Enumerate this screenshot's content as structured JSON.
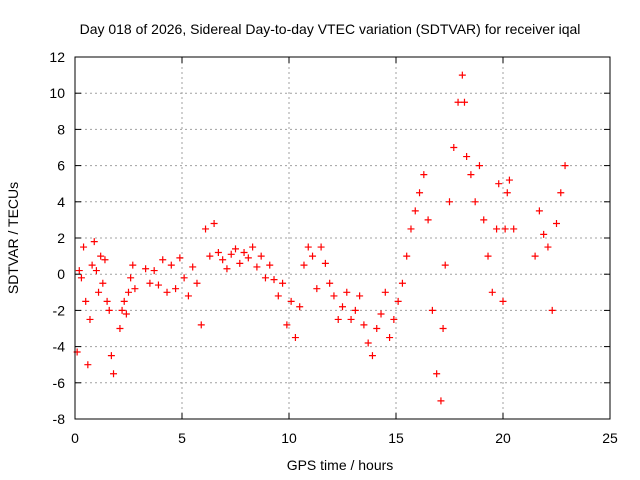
{
  "chart_data": {
    "type": "scatter",
    "title": "Day 018 of 2026, Sidereal Day-to-day VTEC variation (SDTVAR) for receiver iqal",
    "xlabel": "GPS time / hours",
    "ylabel": "SDTVAR / TECUs",
    "xlim": [
      0,
      25
    ],
    "ylim": [
      -8,
      12
    ],
    "xticks": [
      0,
      5,
      10,
      15,
      20,
      25
    ],
    "yticks": [
      -8,
      -6,
      -4,
      -2,
      0,
      2,
      4,
      6,
      8,
      10,
      12
    ],
    "grid": true,
    "marker": "+",
    "colors": {
      "series": "#ff0000",
      "grid": "#a0a0a0",
      "axis": "#000000"
    },
    "series": [
      {
        "name": "SDTVAR",
        "x": [
          0.1,
          0.2,
          0.3,
          0.4,
          0.5,
          0.6,
          0.7,
          0.8,
          0.9,
          1.0,
          1.1,
          1.2,
          1.3,
          1.4,
          1.5,
          1.6,
          1.7,
          1.8,
          2.1,
          2.2,
          2.3,
          2.4,
          2.5,
          2.6,
          2.7,
          2.8,
          3.3,
          3.5,
          3.7,
          3.9,
          4.1,
          4.3,
          4.5,
          4.7,
          4.9,
          5.1,
          5.3,
          5.5,
          5.7,
          5.9,
          6.1,
          6.3,
          6.5,
          6.7,
          6.9,
          7.1,
          7.3,
          7.5,
          7.7,
          7.9,
          8.1,
          8.3,
          8.5,
          8.7,
          8.9,
          9.1,
          9.3,
          9.5,
          9.7,
          9.9,
          10.1,
          10.3,
          10.5,
          10.7,
          10.9,
          11.1,
          11.3,
          11.5,
          11.7,
          11.9,
          12.1,
          12.3,
          12.5,
          12.7,
          12.9,
          13.1,
          13.3,
          13.5,
          13.7,
          13.9,
          14.1,
          14.3,
          14.5,
          14.7,
          14.9,
          15.1,
          15.3,
          15.5,
          15.7,
          15.9,
          16.1,
          16.3,
          16.5,
          16.7,
          16.9,
          17.1,
          17.2,
          17.3,
          17.5,
          17.7,
          17.9,
          18.1,
          18.2,
          18.3,
          18.5,
          18.7,
          18.9,
          19.1,
          19.3,
          19.5,
          19.7,
          19.8,
          20.0,
          20.1,
          20.2,
          20.3,
          20.5,
          21.5,
          21.7,
          21.9,
          22.1,
          22.3,
          22.5,
          22.7,
          22.9
        ],
        "y": [
          -4.3,
          0.2,
          -0.2,
          1.5,
          -1.5,
          -5.0,
          -2.5,
          0.5,
          1.8,
          0.2,
          -1.0,
          1.0,
          -0.5,
          0.8,
          -1.5,
          -2.0,
          -4.5,
          -5.5,
          -3.0,
          -2.0,
          -1.5,
          -2.2,
          -1.0,
          -0.2,
          0.5,
          -0.8,
          0.3,
          -0.5,
          0.2,
          -0.6,
          0.8,
          -1.0,
          0.5,
          -0.8,
          0.9,
          -0.2,
          -1.2,
          0.4,
          -0.5,
          -2.8,
          2.5,
          1.0,
          2.8,
          1.2,
          0.8,
          0.3,
          1.1,
          1.4,
          0.6,
          1.2,
          0.9,
          1.5,
          0.4,
          1.0,
          -0.2,
          0.5,
          -0.3,
          -1.2,
          -0.5,
          -2.8,
          -1.5,
          -3.5,
          -1.8,
          0.5,
          1.5,
          1.0,
          -0.8,
          1.5,
          0.6,
          -0.5,
          -1.2,
          -2.5,
          -1.8,
          -1.0,
          -2.5,
          -2.0,
          -1.2,
          -2.8,
          -3.8,
          -4.5,
          -3.0,
          -2.2,
          -1.0,
          -3.5,
          -2.5,
          -1.5,
          -0.5,
          1.0,
          2.5,
          3.5,
          4.5,
          5.5,
          3.0,
          -2.0,
          -5.5,
          -7.0,
          -3.0,
          0.5,
          4.0,
          7.0,
          9.5,
          11.0,
          9.5,
          6.5,
          5.5,
          4.0,
          6.0,
          3.0,
          1.0,
          -1.0,
          2.5,
          5.0,
          -1.5,
          2.5,
          4.5,
          5.2,
          2.5,
          1.0,
          3.5,
          2.2,
          1.5,
          -2.0,
          2.8,
          4.5,
          6.0
        ]
      }
    ]
  }
}
